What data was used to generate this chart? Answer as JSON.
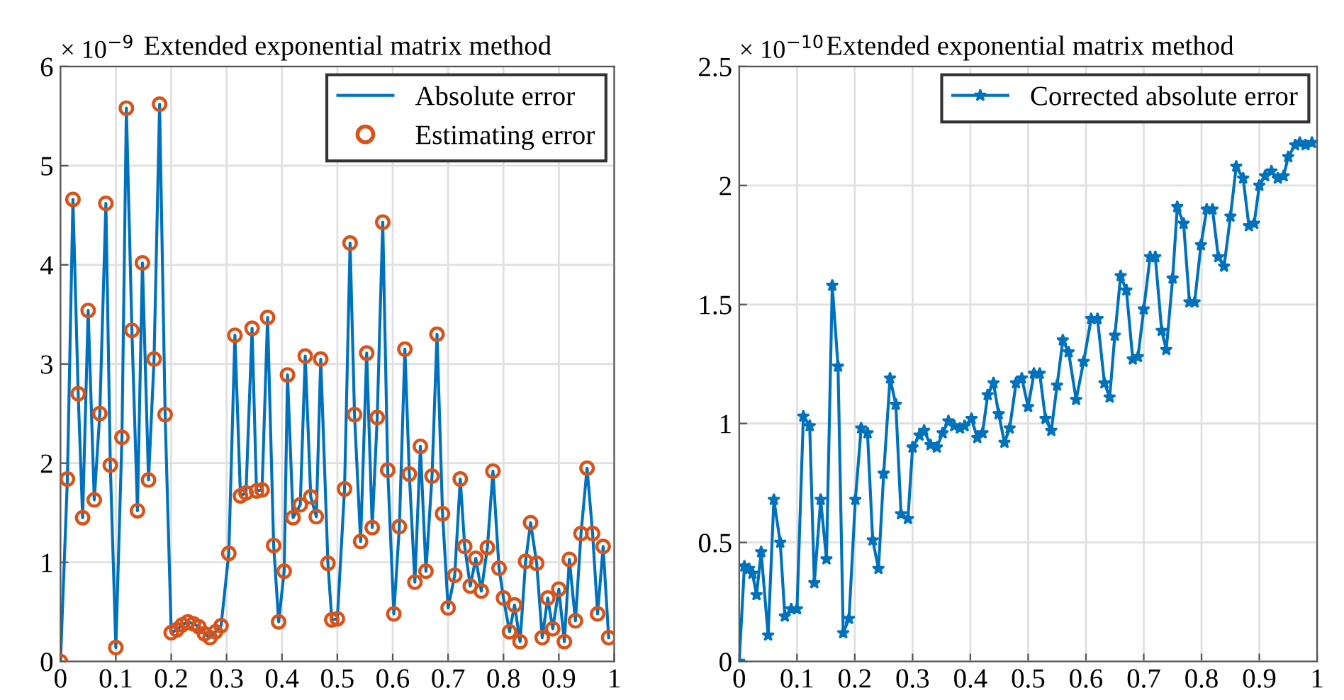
{
  "chart_data": [
    {
      "type": "line",
      "title": "Extended exponential matrix method",
      "annotations": [
        "× 10$^{−9}$"
      ],
      "x": [
        0,
        0.0125,
        0.0225,
        0.032,
        0.04,
        0.05,
        0.061,
        0.071,
        0.082,
        0.09,
        0.1,
        0.111,
        0.119,
        0.129,
        0.139,
        0.148,
        0.159,
        0.169,
        0.179,
        0.189,
        0.2,
        0.21,
        0.22,
        0.23,
        0.24,
        0.25,
        0.26,
        0.27,
        0.28,
        0.29,
        0.304,
        0.315,
        0.325,
        0.335,
        0.346,
        0.354,
        0.364,
        0.374,
        0.385,
        0.394,
        0.404,
        0.41,
        0.42,
        0.433,
        0.442,
        0.452,
        0.462,
        0.47,
        0.483,
        0.49,
        0.5,
        0.513,
        0.523,
        0.531,
        0.542,
        0.553,
        0.563,
        0.572,
        0.582,
        0.591,
        0.602,
        0.612,
        0.622,
        0.63,
        0.64,
        0.65,
        0.66,
        0.671,
        0.68,
        0.69,
        0.7,
        0.712,
        0.722,
        0.73,
        0.74,
        0.75,
        0.76,
        0.771,
        0.781,
        0.792,
        0.8,
        0.811,
        0.82,
        0.83,
        0.84,
        0.849,
        0.86,
        0.87,
        0.88,
        0.889,
        0.9,
        0.91,
        0.919,
        0.93,
        0.94,
        0.951,
        0.961,
        0.97,
        0.98,
        0.99
      ],
      "series": [
        {
          "name": "Absolute error",
          "color": "#0072bd",
          "marker": "none",
          "values": [
            0,
            1.84,
            4.66,
            2.7,
            1.45,
            3.54,
            1.63,
            2.5,
            4.62,
            1.98,
            0.14,
            2.26,
            5.58,
            3.34,
            1.52,
            4.02,
            1.83,
            3.05,
            5.62,
            2.49,
            0.29,
            0.32,
            0.37,
            0.4,
            0.38,
            0.35,
            0.28,
            0.24,
            0.3,
            0.36,
            1.09,
            3.29,
            1.67,
            1.7,
            3.36,
            1.72,
            1.73,
            3.47,
            1.17,
            0.4,
            0.91,
            2.89,
            1.45,
            1.58,
            3.08,
            1.66,
            1.46,
            3.05,
            0.99,
            0.42,
            0.43,
            1.74,
            4.22,
            2.49,
            1.21,
            3.11,
            1.35,
            2.46,
            4.43,
            1.93,
            0.48,
            1.36,
            3.15,
            1.89,
            0.8,
            2.17,
            0.91,
            1.87,
            3.3,
            1.49,
            0.54,
            0.87,
            1.84,
            1.16,
            0.76,
            1.04,
            0.71,
            1.15,
            1.92,
            0.94,
            0.64,
            0.3,
            0.57,
            0.2,
            1.01,
            1.4,
            0.99,
            0.24,
            0.64,
            0.33,
            0.73,
            0.2,
            1.03,
            0.41,
            1.29,
            1.95,
            1.29,
            0.48,
            1.16,
            0.24
          ]
        },
        {
          "name": "Estimating error",
          "type": "scatter",
          "color": "#d95319",
          "marker": "circle",
          "values": [
            0,
            1.84,
            4.66,
            2.7,
            1.45,
            3.54,
            1.63,
            2.5,
            4.62,
            1.98,
            0.14,
            2.26,
            5.58,
            3.34,
            1.52,
            4.02,
            1.83,
            3.05,
            5.62,
            2.49,
            0.29,
            0.32,
            0.37,
            0.4,
            0.38,
            0.35,
            0.28,
            0.24,
            0.3,
            0.36,
            1.09,
            3.29,
            1.67,
            1.7,
            3.36,
            1.72,
            1.73,
            3.47,
            1.17,
            0.4,
            0.91,
            2.89,
            1.45,
            1.58,
            3.08,
            1.66,
            1.46,
            3.05,
            0.99,
            0.42,
            0.43,
            1.74,
            4.22,
            2.49,
            1.21,
            3.11,
            1.35,
            2.46,
            4.43,
            1.93,
            0.48,
            1.36,
            3.15,
            1.89,
            0.8,
            2.17,
            0.91,
            1.87,
            3.3,
            1.49,
            0.54,
            0.87,
            1.84,
            1.16,
            0.76,
            1.04,
            0.71,
            1.15,
            1.92,
            0.94,
            0.64,
            0.3,
            0.57,
            0.2,
            1.01,
            1.4,
            0.99,
            0.24,
            0.64,
            0.33,
            0.73,
            0.2,
            1.03,
            0.41,
            1.29,
            1.95,
            1.29,
            0.48,
            1.16,
            0.24
          ]
        }
      ],
      "xlim": [
        0,
        1
      ],
      "xticks": [
        0,
        0.1,
        0.2,
        0.3,
        0.4,
        0.5,
        0.6,
        0.7,
        0.8,
        0.9,
        1
      ],
      "ylim": [
        0,
        6
      ],
      "yticks": [
        0,
        1,
        2,
        3,
        4,
        5,
        6
      ],
      "grid": true,
      "legend": "top right"
    },
    {
      "type": "line",
      "title": "Extended exponential matrix method",
      "annotations": [
        "× 10$^{−10}$"
      ],
      "x": [
        0,
        0.009,
        0.017,
        0.023,
        0.03,
        0.038,
        0.05,
        0.06,
        0.071,
        0.079,
        0.09,
        0.1,
        0.111,
        0.122,
        0.13,
        0.141,
        0.151,
        0.161,
        0.171,
        0.18,
        0.19,
        0.201,
        0.211,
        0.222,
        0.231,
        0.241,
        0.25,
        0.261,
        0.271,
        0.28,
        0.292,
        0.3,
        0.312,
        0.32,
        0.331,
        0.342,
        0.352,
        0.362,
        0.372,
        0.382,
        0.39,
        0.402,
        0.412,
        0.421,
        0.43,
        0.44,
        0.449,
        0.459,
        0.468,
        0.479,
        0.489,
        0.5,
        0.51,
        0.52,
        0.53,
        0.54,
        0.55,
        0.56,
        0.57,
        0.583,
        0.596,
        0.609,
        0.62,
        0.632,
        0.641,
        0.65,
        0.66,
        0.67,
        0.681,
        0.69,
        0.7,
        0.711,
        0.72,
        0.731,
        0.739,
        0.75,
        0.758,
        0.769,
        0.779,
        0.788,
        0.799,
        0.809,
        0.819,
        0.829,
        0.839,
        0.85,
        0.86,
        0.872,
        0.882,
        0.891,
        0.9,
        0.91,
        0.921,
        0.932,
        0.942,
        0.95,
        0.962,
        0.97,
        0.98,
        0.991
      ],
      "series": [
        {
          "name": "Corrected absolute error",
          "color": "#0072bd",
          "marker": "star",
          "values": [
            0,
            0.4,
            0.39,
            0.37,
            0.28,
            0.46,
            0.11,
            0.68,
            0.5,
            0.19,
            0.22,
            0.22,
            1.03,
            0.99,
            0.33,
            0.68,
            0.43,
            1.58,
            1.24,
            0.12,
            0.18,
            0.68,
            0.98,
            0.96,
            0.51,
            0.39,
            0.79,
            1.19,
            1.08,
            0.62,
            0.6,
            0.9,
            0.95,
            0.97,
            0.91,
            0.9,
            0.96,
            1.01,
            0.99,
            0.98,
            0.99,
            1.02,
            0.94,
            0.96,
            1.12,
            1.17,
            1.04,
            0.92,
            0.98,
            1.17,
            1.19,
            1.07,
            1.21,
            1.21,
            1.02,
            0.97,
            1.16,
            1.35,
            1.3,
            1.1,
            1.26,
            1.44,
            1.44,
            1.17,
            1.11,
            1.37,
            1.62,
            1.56,
            1.27,
            1.28,
            1.48,
            1.7,
            1.7,
            1.39,
            1.31,
            1.61,
            1.91,
            1.84,
            1.51,
            1.51,
            1.75,
            1.9,
            1.9,
            1.7,
            1.66,
            1.87,
            2.08,
            2.03,
            1.83,
            1.84,
            2.0,
            2.04,
            2.06,
            2.03,
            2.04,
            2.12,
            2.17,
            2.18,
            2.17,
            2.18
          ]
        }
      ],
      "xlim": [
        0,
        1
      ],
      "xticks": [
        0,
        0.1,
        0.2,
        0.3,
        0.4,
        0.5,
        0.6,
        0.7,
        0.8,
        0.9,
        1
      ],
      "ylim": [
        0,
        2.5
      ],
      "yticks": [
        0,
        0.5,
        1,
        1.5,
        2,
        2.5
      ],
      "grid": true,
      "legend": "top right"
    }
  ]
}
